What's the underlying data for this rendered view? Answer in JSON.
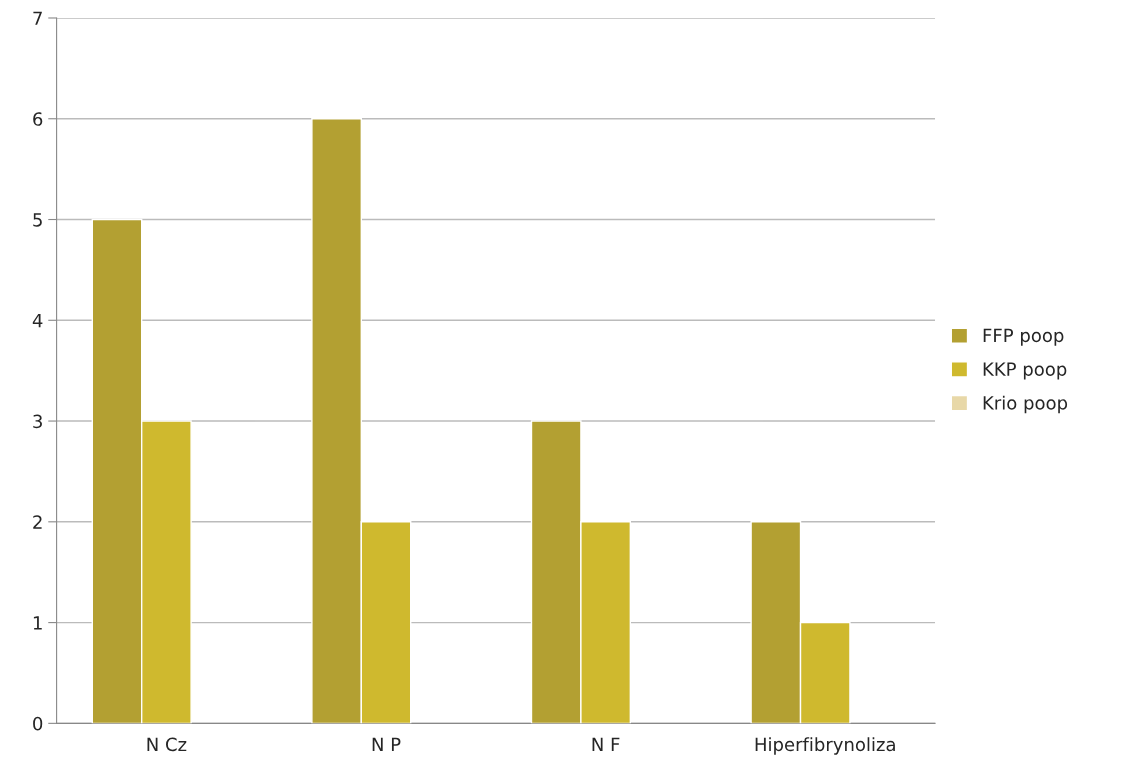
{
  "chart_data": {
    "type": "bar",
    "categories": [
      "N Cz",
      "N P",
      "N F",
      "Hiperfibrynoliza"
    ],
    "series": [
      {
        "name": "FFP poop",
        "color": "#b3a032",
        "values": [
          5,
          6,
          3,
          2
        ]
      },
      {
        "name": "KKP poop",
        "color": "#cfb92e",
        "values": [
          3,
          2,
          2,
          1
        ]
      },
      {
        "name": "Krio poop",
        "color": "#e8d8a8",
        "values": [
          null,
          null,
          null,
          null
        ]
      }
    ],
    "ylim": [
      0,
      7
    ],
    "yticks": [
      0,
      1,
      2,
      3,
      4,
      5,
      6,
      7
    ],
    "grid": "y",
    "legend": "right"
  }
}
